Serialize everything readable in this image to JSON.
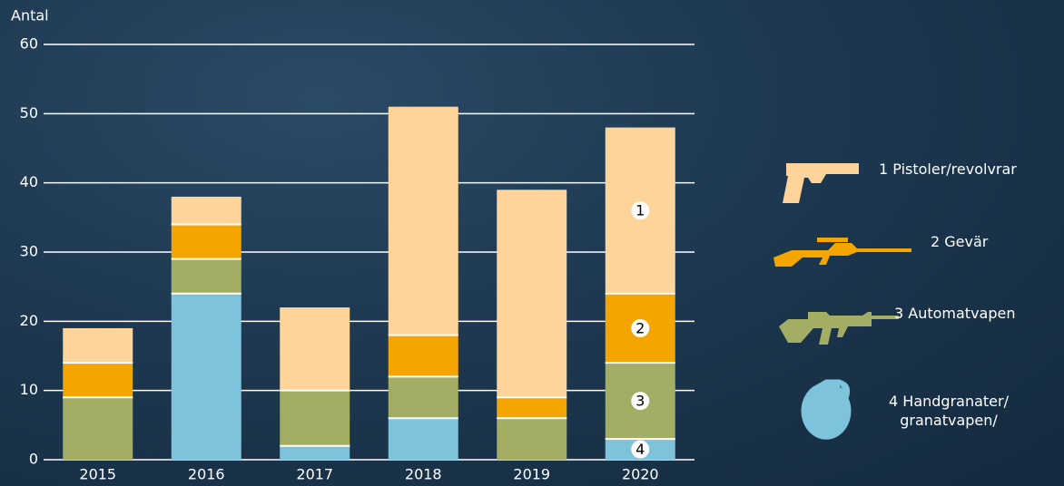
{
  "chart_data": {
    "type": "stacked_bar",
    "y_label": "Antal",
    "categories": [
      "2015",
      "2016",
      "2017",
      "2018",
      "2019",
      "2020"
    ],
    "series": [
      {
        "name": "1 Pistoler/revolvrar",
        "color": "#fdd49a",
        "marker": "1",
        "values": [
          5,
          4,
          12,
          33,
          30,
          24
        ]
      },
      {
        "name": "2 Gevär",
        "color": "#f5a500",
        "marker": "2",
        "values": [
          5,
          5,
          0,
          6,
          3,
          10
        ]
      },
      {
        "name": "3 Automatvapen",
        "color": "#a3ad63",
        "marker": "3",
        "values": [
          9,
          5,
          8,
          6,
          6,
          11
        ]
      },
      {
        "name": "4 Handgranater/ granatvapen/",
        "color": "#7dc3dc",
        "marker": "4",
        "values": [
          0,
          24,
          2,
          6,
          0,
          3
        ]
      }
    ],
    "ylim": [
      0,
      60
    ],
    "yticks": [
      0,
      10,
      20,
      30,
      40,
      50,
      60
    ],
    "grid": true
  }
}
